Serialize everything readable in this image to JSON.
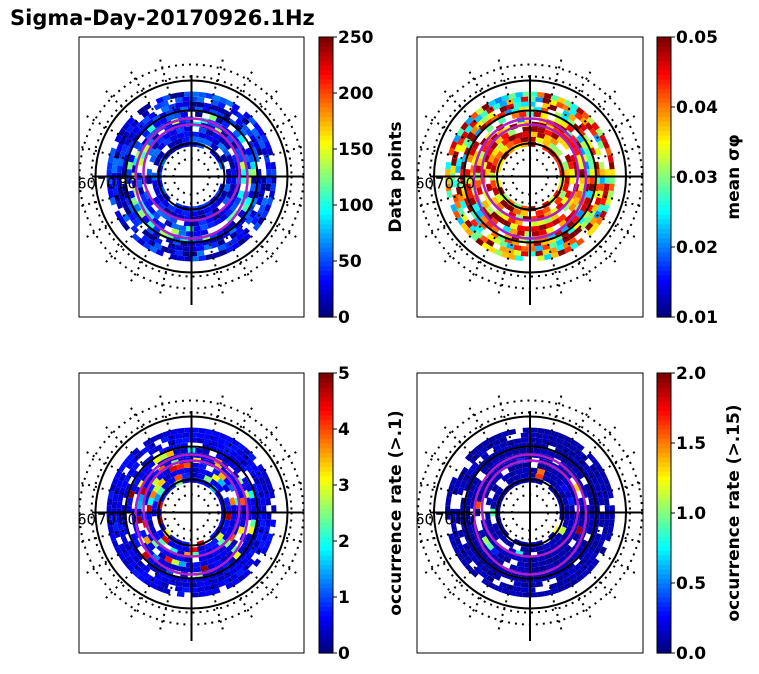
{
  "figure": {
    "title": "Sigma-Day-20170926.1Hz"
  },
  "colors": {
    "frame": "#000000",
    "oval": "#b01ec8",
    "background": "#ffffff"
  },
  "lat_labels": [
    "60",
    "70",
    "80"
  ],
  "chart_data": [
    {
      "type": "heatmap",
      "projection": "polar",
      "title": "",
      "colorbar": {
        "label": "Data points",
        "min": 0,
        "max": 250,
        "ticks": [
          "0",
          "50",
          "100",
          "150",
          "200",
          "250"
        ],
        "colormap": "jet"
      },
      "lat_rings": [
        60,
        70,
        80
      ],
      "dominant_level": 0.12
    },
    {
      "type": "heatmap",
      "projection": "polar",
      "title": "",
      "colorbar": {
        "label": "mean σφ",
        "min": 0.01,
        "max": 0.05,
        "ticks": [
          "0.01",
          "0.02",
          "0.03",
          "0.04",
          "0.05"
        ],
        "colormap": "jet"
      },
      "lat_rings": [
        60,
        70,
        80
      ],
      "dominant_level": 0.45
    },
    {
      "type": "heatmap",
      "projection": "polar",
      "title": "",
      "colorbar": {
        "label": "occurrence rate (>.1)",
        "min": 0,
        "max": 5,
        "ticks": [
          "0",
          "1",
          "2",
          "3",
          "4",
          "5"
        ],
        "colormap": "jet"
      },
      "lat_rings": [
        60,
        70,
        80
      ],
      "dominant_level": 0.05
    },
    {
      "type": "heatmap",
      "projection": "polar",
      "title": "",
      "colorbar": {
        "label": "occurrence rate (>.15)",
        "min": 0.0,
        "max": 2.0,
        "ticks": [
          "0.0",
          "0.5",
          "1.0",
          "1.5",
          "2.0"
        ],
        "colormap": "jet"
      },
      "lat_rings": [
        60,
        70,
        80
      ],
      "dominant_level": 0.02
    }
  ]
}
